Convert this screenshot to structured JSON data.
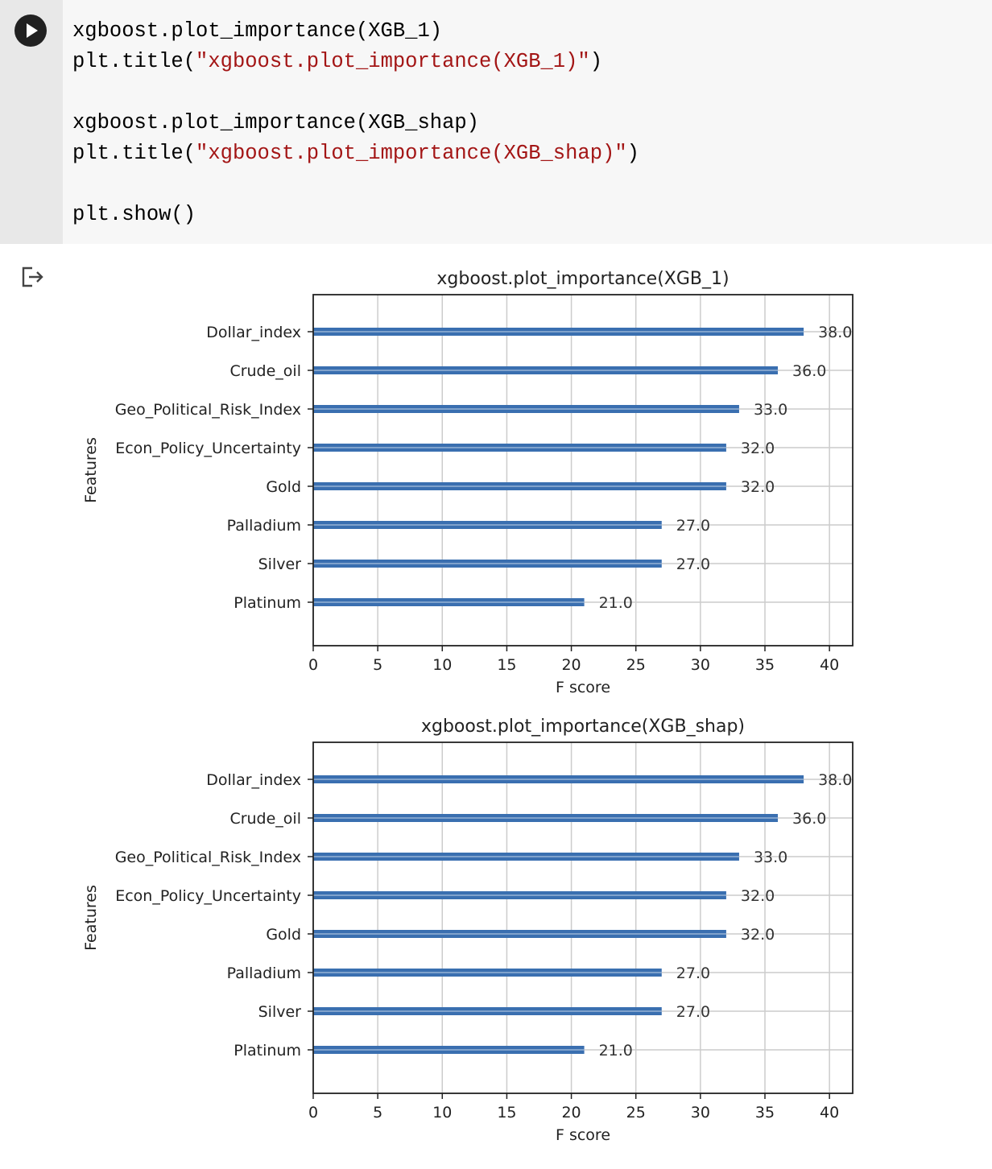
{
  "cell": {
    "code_lines": [
      [
        {
          "t": "xgboost.plot_importance(XGB_1)"
        }
      ],
      [
        {
          "t": "plt.title("
        },
        {
          "t": "\"xgboost.plot_importance(XGB_1)\"",
          "s": true
        },
        {
          "t": ")"
        }
      ],
      [
        {
          "t": ""
        }
      ],
      [
        {
          "t": "xgboost.plot_importance(XGB_shap)"
        }
      ],
      [
        {
          "t": "plt.title("
        },
        {
          "t": "\"xgboost.plot_importance(XGB_shap)\"",
          "s": true
        },
        {
          "t": ")"
        }
      ],
      [
        {
          "t": ""
        }
      ],
      [
        {
          "t": "plt.show()"
        }
      ]
    ]
  },
  "icons": {
    "run": "play-icon",
    "output": "output-redirect-icon"
  },
  "colors": {
    "bar": "#3a6fb0",
    "bar_highlight": "#ffffff",
    "grid": "#cccccc"
  },
  "chart_data": [
    {
      "type": "bar",
      "orientation": "horizontal",
      "title": "xgboost.plot_importance(XGB_1)",
      "xlabel": "F score",
      "ylabel": "Features",
      "categories": [
        "Dollar_index",
        "Crude_oil",
        "Geo_Political_Risk_Index",
        "Econ_Policy_Uncertainty",
        "Gold",
        "Palladium",
        "Silver",
        "Platinum"
      ],
      "values": [
        38.0,
        36.0,
        33.0,
        32.0,
        32.0,
        27.0,
        27.0,
        21.0
      ],
      "value_labels": [
        "38.0",
        "36.0",
        "33.0",
        "32.0",
        "32.0",
        "27.0",
        "27.0",
        "21.0"
      ],
      "xticks": [
        "0",
        "5",
        "10",
        "15",
        "20",
        "25",
        "30",
        "35",
        "40"
      ],
      "xlim": [
        0,
        41.8
      ],
      "grid": true
    },
    {
      "type": "bar",
      "orientation": "horizontal",
      "title": "xgboost.plot_importance(XGB_shap)",
      "xlabel": "F score",
      "ylabel": "Features",
      "categories": [
        "Dollar_index",
        "Crude_oil",
        "Geo_Political_Risk_Index",
        "Econ_Policy_Uncertainty",
        "Gold",
        "Palladium",
        "Silver",
        "Platinum"
      ],
      "values": [
        38.0,
        36.0,
        33.0,
        32.0,
        32.0,
        27.0,
        27.0,
        21.0
      ],
      "value_labels": [
        "38.0",
        "36.0",
        "33.0",
        "32.0",
        "32.0",
        "27.0",
        "27.0",
        "21.0"
      ],
      "xticks": [
        "0",
        "5",
        "10",
        "15",
        "20",
        "25",
        "30",
        "35",
        "40"
      ],
      "xlim": [
        0,
        41.8
      ],
      "grid": true
    }
  ]
}
